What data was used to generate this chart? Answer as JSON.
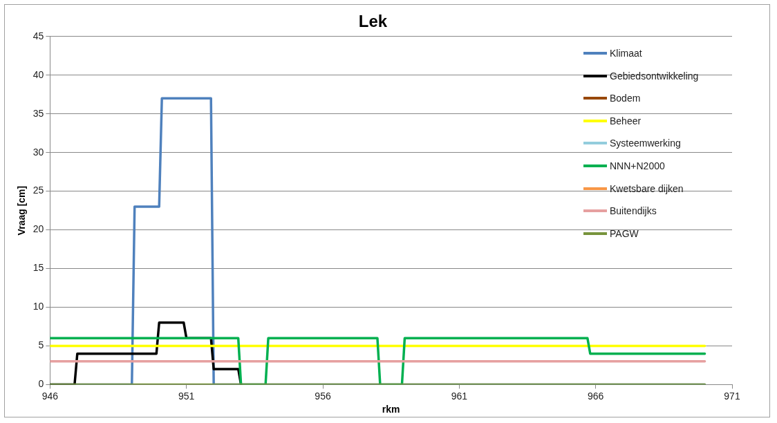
{
  "chart_data": {
    "type": "line",
    "title": "Lek",
    "xlabel": "rkm",
    "ylabel": "Vraag [cm]",
    "xlim": [
      946,
      971
    ],
    "xticks": [
      946,
      951,
      956,
      961,
      966,
      971
    ],
    "ylim": [
      0,
      45
    ],
    "yticks": [
      0,
      5,
      10,
      15,
      20,
      25,
      30,
      35,
      40,
      45
    ],
    "grid": "y",
    "legend": "top right",
    "marker": "none",
    "line_style": "solid",
    "series": [
      {
        "name": "Klimaat",
        "color": "#4f81bd",
        "x": [
          946,
          949.0,
          949.1,
          950.0,
          950.1,
          951.9,
          952.0,
          970
        ],
        "values": [
          0,
          0,
          23,
          23,
          37,
          37,
          0,
          0
        ]
      },
      {
        "name": "Gebiedsontwikkeling",
        "color": "#000000",
        "x": [
          946,
          946.9,
          947.0,
          949.9,
          950.0,
          950.9,
          951.0,
          951.9,
          952.0,
          952.9,
          953.0
        ],
        "values": [
          0,
          0,
          4,
          4,
          8,
          8,
          6,
          6,
          2,
          2,
          0
        ]
      },
      {
        "name": "Bodem",
        "color": "#984807"
      },
      {
        "name": "Beheer",
        "color": "#ffff00",
        "x": [
          946,
          970
        ],
        "values": [
          5,
          5
        ]
      },
      {
        "name": "Systeemwerking",
        "color": "#93cddd"
      },
      {
        "name": "NNN+N2000",
        "color": "#00b050",
        "x": [
          946,
          952.9,
          953.0,
          953.9,
          954.0,
          958.0,
          958.1,
          958.9,
          959.0,
          965.7,
          965.8,
          970
        ],
        "values": [
          6,
          6,
          0,
          0,
          6,
          6,
          0,
          0,
          6,
          6,
          4,
          4
        ]
      },
      {
        "name": "Kwetsbare dijken",
        "color": "#f79646"
      },
      {
        "name": "Buitendijks",
        "color": "#e6a0a0",
        "x": [
          946,
          970
        ],
        "values": [
          3,
          3
        ]
      },
      {
        "name": "PAGW",
        "color": "#77933c",
        "x": [
          946,
          970
        ],
        "values": [
          0,
          0
        ]
      }
    ]
  }
}
